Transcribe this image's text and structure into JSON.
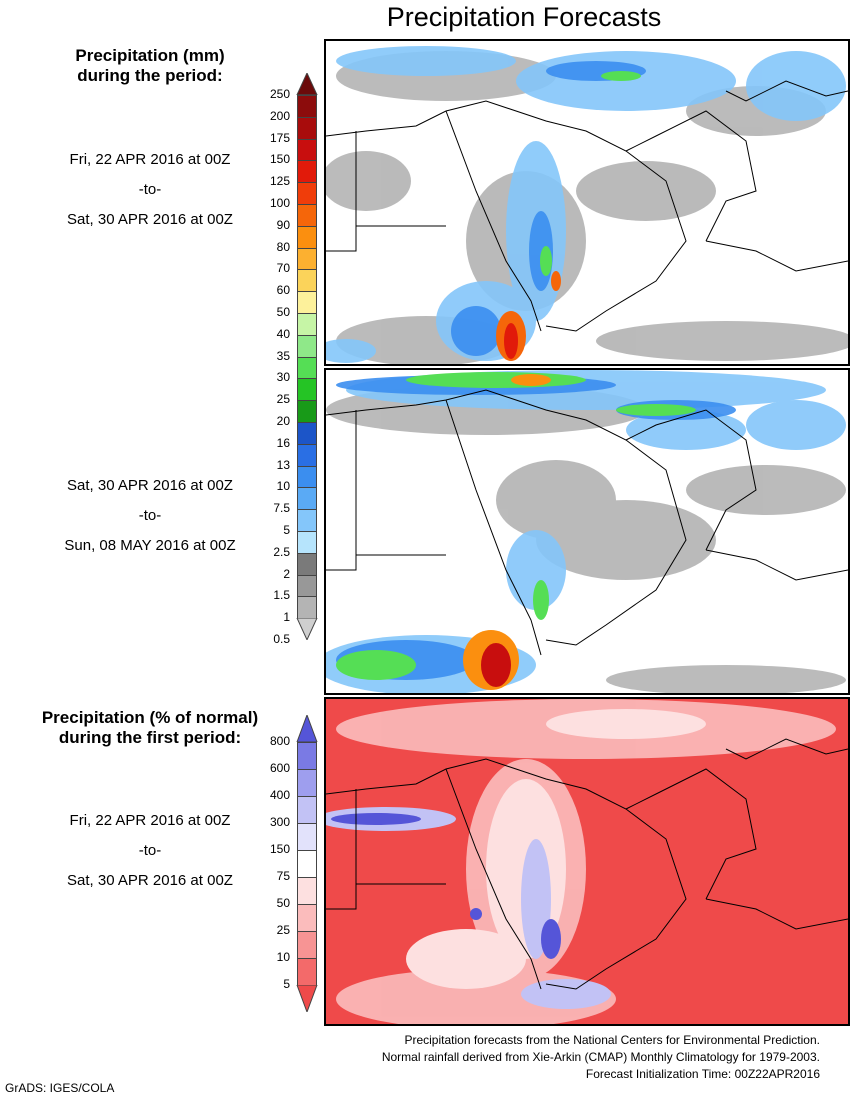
{
  "title": "Precipitation Forecasts",
  "legend_mm": {
    "header_line1": "Precipitation (mm)",
    "header_line2": "during the period:",
    "ticks": [
      "250",
      "200",
      "175",
      "150",
      "125",
      "100",
      "90",
      "80",
      "70",
      "60",
      "50",
      "40",
      "35",
      "30",
      "25",
      "20",
      "16",
      "13",
      "10",
      "7.5",
      "5",
      "2.5",
      "2",
      "1.5",
      "1",
      "0.5"
    ],
    "colors": [
      "#6b0a0a",
      "#8c0c0c",
      "#a80c0c",
      "#c80e0e",
      "#e11a0a",
      "#f03d0a",
      "#f5660a",
      "#fb8f0f",
      "#fcb030",
      "#fbd35a",
      "#fdf19b",
      "#c6f5a6",
      "#8fe889",
      "#55de55",
      "#25c425",
      "#189a18",
      "#1c55c8",
      "#2a6fe4",
      "#3b8eef",
      "#5aaaf5",
      "#84c6fa",
      "#b6e4fc",
      "#7a7a7a",
      "#989898",
      "#b4b4b4",
      "#cfcfcf"
    ]
  },
  "legend_pct": {
    "header_line1": "Precipitation (% of normal)",
    "header_line2": "during the first period:",
    "ticks": [
      "800",
      "600",
      "400",
      "300",
      "150",
      "75",
      "50",
      "25",
      "10",
      "5"
    ],
    "colors": [
      "#5555d8",
      "#7a7ae4",
      "#9e9eee",
      "#c2c2f5",
      "#e2e2fb",
      "#ffffff",
      "#fde0e0",
      "#fbbcbc",
      "#f79494",
      "#f36a6a",
      "#ef4a4a"
    ]
  },
  "periods": [
    {
      "start": "Fri, 22 APR 2016 at 00Z",
      "sep": "-to-",
      "end": "Sat, 30 APR 2016 at 00Z"
    },
    {
      "start": "Sat, 30 APR 2016 at 00Z",
      "sep": "-to-",
      "end": "Sun, 08 MAY 2016 at 00Z"
    },
    {
      "start": "Fri, 22 APR 2016 at 00Z",
      "sep": "-to-",
      "end": "Sat, 30 APR 2016 at 00Z"
    }
  ],
  "credits": {
    "line1": "Precipitation forecasts from the National Centers for Environmental Prediction.",
    "line2": "Normal rainfall derived from Xie-Arkin (CMAP) Monthly Climatology for 1979-2003.",
    "line3": "Forecast Initialization Time: 00Z22APR2016"
  },
  "footer": "GrADS: IGES/COLA"
}
